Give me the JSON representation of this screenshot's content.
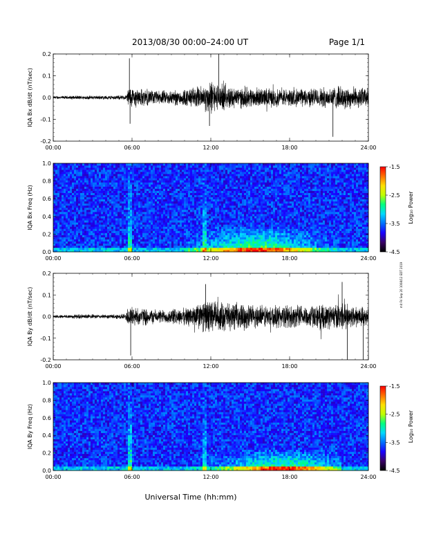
{
  "header": {
    "title": "2013/08/30  00:00–24:00 UT",
    "page": "Page 1/1"
  },
  "side_note": "mit Fri Sep 20 1008/12 EDT 2019",
  "xlabel": "Universal Time (hh:mm)",
  "colorbar": {
    "ticks": [
      "-1.5",
      "-2.5",
      "-3.5",
      "-4.5"
    ],
    "label": "Log₁₀ Power"
  },
  "chart_data": [
    {
      "type": "line",
      "ylabel": "IQA Bx dB/dt (nT/sec)",
      "ylim": [
        -0.2,
        0.2
      ],
      "y_ticks": [
        "0.2",
        "0.1",
        "0.0",
        "-0.1",
        "-0.2"
      ],
      "x_ticks": [
        "00:00",
        "06:00",
        "12:00",
        "18:00",
        "24:00"
      ],
      "xlim": [
        0,
        24
      ],
      "series": [
        {
          "envelope_hours": [
            0,
            2,
            4,
            5.5,
            5.8,
            6.2,
            8,
            10,
            11.5,
            12,
            12.5,
            14,
            16,
            18,
            20,
            22,
            24
          ],
          "envelope_amplitude": [
            0.008,
            0.01,
            0.01,
            0.012,
            0.06,
            0.05,
            0.035,
            0.045,
            0.065,
            0.09,
            0.07,
            0.055,
            0.05,
            0.045,
            0.05,
            0.06,
            0.05
          ],
          "peaks": [
            {
              "hour": 5.8,
              "value": 0.18
            },
            {
              "hour": 5.85,
              "value": -0.12
            },
            {
              "hour": 12.6,
              "value": 0.2
            },
            {
              "hour": 11.9,
              "value": -0.13
            },
            {
              "hour": 21.3,
              "value": -0.18
            }
          ]
        }
      ]
    },
    {
      "type": "heatmap",
      "ylabel": "IQA Bx Freq (Hz)",
      "ylim": [
        0.0,
        1.0
      ],
      "y_ticks": [
        "1.0",
        "0.8",
        "0.6",
        "0.4",
        "0.2",
        "0.0"
      ],
      "x_ticks": [
        "00:00",
        "06:00",
        "12:00",
        "18:00",
        "24:00"
      ],
      "xlim": [
        0,
        24
      ],
      "zlim": [
        -4.5,
        -1.5
      ],
      "features": {
        "background_level": -3.7,
        "low_freq_enhancement": {
          "from_hour": 10,
          "to_hour": 22,
          "peak_hour": 15.5,
          "max_freq": 0.3,
          "level": -2.6
        },
        "event_columns": [
          {
            "hour": 5.8,
            "level": -2.8
          },
          {
            "hour": 11.5,
            "level": -3.0
          }
        ]
      }
    },
    {
      "type": "line",
      "ylabel": "IQA By dB/dt (nT/sec)",
      "ylim": [
        -0.2,
        0.2
      ],
      "y_ticks": [
        "0.2",
        "0.1",
        "0.0",
        "-0.1",
        "-0.2"
      ],
      "x_ticks": [
        "00:00",
        "06:00",
        "12:00",
        "18:00",
        "24:00"
      ],
      "xlim": [
        0,
        24
      ],
      "series": [
        {
          "envelope_hours": [
            0,
            2,
            4,
            5.5,
            5.8,
            6.2,
            8,
            10,
            11.5,
            12,
            12.5,
            14,
            16,
            18,
            20,
            22,
            24
          ],
          "envelope_amplitude": [
            0.008,
            0.012,
            0.01,
            0.015,
            0.07,
            0.05,
            0.035,
            0.045,
            0.08,
            0.09,
            0.08,
            0.07,
            0.06,
            0.06,
            0.06,
            0.07,
            0.05
          ],
          "peaks": [
            {
              "hour": 5.9,
              "value": -0.18
            },
            {
              "hour": 11.6,
              "value": 0.15
            },
            {
              "hour": 22.4,
              "value": -0.2
            },
            {
              "hour": 23.6,
              "value": -0.2
            },
            {
              "hour": 22.0,
              "value": 0.16
            }
          ]
        }
      ]
    },
    {
      "type": "heatmap",
      "ylabel": "IQA By Freq (Hz)",
      "ylim": [
        0.0,
        1.0
      ],
      "y_ticks": [
        "1.0",
        "0.8",
        "0.6",
        "0.4",
        "0.2",
        "0.0"
      ],
      "x_ticks": [
        "00:00",
        "06:00",
        "12:00",
        "18:00",
        "24:00"
      ],
      "xlim": [
        0,
        24
      ],
      "zlim": [
        -4.5,
        -1.5
      ],
      "features": {
        "background_level": -3.7,
        "low_freq_enhancement": {
          "from_hour": 10,
          "to_hour": 22,
          "peak_hour": 17.5,
          "max_freq": 0.25,
          "level": -2.6
        },
        "event_columns": [
          {
            "hour": 5.8,
            "level": -2.7
          },
          {
            "hour": 11.5,
            "level": -3.0
          }
        ]
      }
    }
  ],
  "colors": {
    "background": "#ffffff",
    "axis": "#000000",
    "trace": "#000000",
    "colormap": [
      "#000000",
      "#3a0066",
      "#1a00ff",
      "#0070ff",
      "#00d8ff",
      "#00ff80",
      "#c0ff00",
      "#ffe000",
      "#ff7000",
      "#ff0000"
    ]
  }
}
